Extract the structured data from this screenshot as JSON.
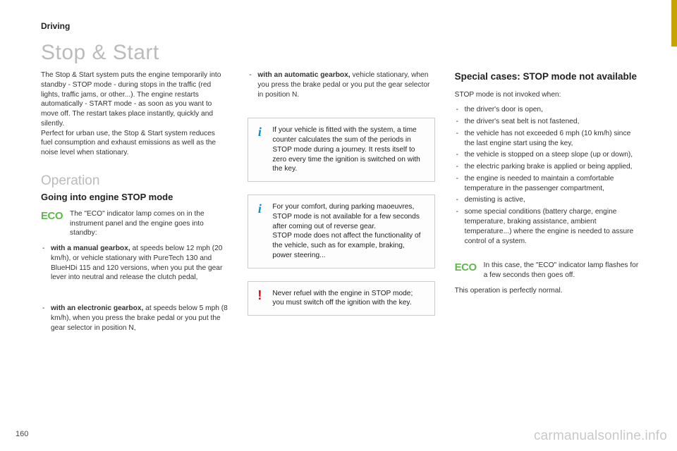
{
  "header": {
    "section": "Driving",
    "title": "Stop & Start"
  },
  "col1": {
    "intro": "The Stop & Start system puts the engine temporarily into standby - STOP mode - during stops in the traffic (red lights, traffic jams, or other...). The engine restarts automatically - START mode - as soon as you want to move off. The restart takes place instantly, quickly and silently.\nPerfect for urban use, the Stop & Start system reduces fuel consumption and exhaust emissions as well as the noise level when stationary.",
    "operation_heading": "Operation",
    "stopmode_heading": "Going into engine STOP mode",
    "eco_label": "ECO",
    "eco_text": "The \"ECO\" indicator lamp comes on in the instrument panel and the engine goes into standby:",
    "bullet1_bold": "with a manual gearbox,",
    "bullet1_rest": " at speeds below 12 mph (20 km/h), or vehicle stationary with PureTech 130 and BlueHDi 115 and 120 versions, when you put the gear lever into neutral and release the clutch pedal,",
    "bullet2_bold": "with an electronic gearbox,",
    "bullet2_rest": " at speeds below 5 mph (8 km/h), when you press the brake pedal or you put the gear selector in position N,"
  },
  "col2": {
    "bullet_bold": "with an automatic gearbox,",
    "bullet_rest": " vehicle stationary, when you press the brake pedal or you put the gear selector in position N.",
    "info1": "If your vehicle is fitted with the system, a time counter calculates the sum of the periods in STOP mode during a journey. It rests itself to zero every time the ignition is switched on with the key.",
    "info2": "For your comfort, during parking maoeuvres, STOP mode is not available for a few seconds after coming out of reverse gear.\nSTOP mode does not affect the functionality of the vehicle, such as for example, braking, power steering...",
    "warn": "Never refuel with the engine in STOP mode; you must switch off the ignition with the key."
  },
  "col3": {
    "heading": "Special cases: STOP mode not available",
    "lead": "STOP mode is not invoked when:",
    "items": [
      "the driver's door is open,",
      "the driver's seat belt is not fastened,",
      "the vehicle has not exceeded 6 mph (10 km/h) since the last engine start using the key,",
      "the vehicle is stopped on a steep slope (up or down),",
      "the electric parking brake is applied or being applied,",
      "the engine is needed to maintain a comfortable temperature in the passenger compartment,",
      "demisting is active,",
      "some special conditions (battery charge, engine temperature, braking assistance, ambient temperature...) where the engine is needed to assure control of a system."
    ],
    "eco_label": "ECO",
    "eco_text": "In this case, the \"ECO\" indicator lamp flashes for a few seconds then goes off.",
    "closing": "This operation is perfectly normal."
  },
  "page_number": "160",
  "watermark": "carmanualsonline.info",
  "colors": {
    "eco_green": "#5fb84c",
    "info_blue": "#0090d4",
    "warn_red": "#d80012",
    "tab_yellow": "#c6a400",
    "title_grey": "#bbbbbb"
  }
}
